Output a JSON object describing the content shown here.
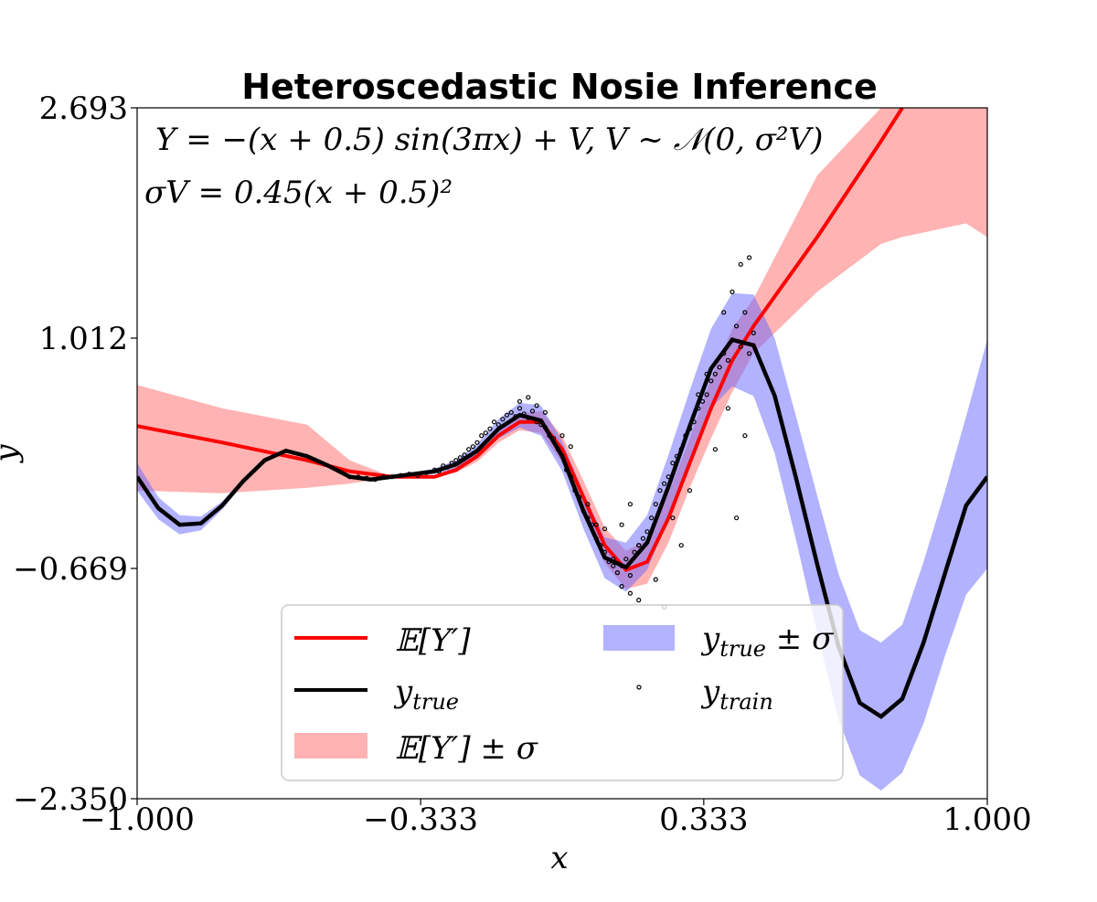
{
  "chart_data": {
    "type": "line",
    "title": "Heteroscedastic Nosie Inference",
    "xlabel": "x",
    "ylabel": "y",
    "xlim": [
      -1.0,
      1.0
    ],
    "ylim": [
      -2.35,
      2.693
    ],
    "xticks": [
      "−1.000",
      "−0.333",
      "0.333",
      "1.000"
    ],
    "xtick_values": [
      -1.0,
      -0.333,
      0.333,
      1.0
    ],
    "yticks": [
      "−2.350",
      "−0.669",
      "1.012",
      "2.693"
    ],
    "ytick_values": [
      -2.35,
      -0.669,
      1.012,
      2.693
    ],
    "grid": false,
    "legend_position": "lower-center",
    "annotations": {
      "equation_line1": "Y = −(x + 0.5) sin(3πx) + V,  V ~ 𝒩(0, σ²V)",
      "equation_line2": "σV = 0.45(x + 0.5)²"
    },
    "legend": [
      {
        "key": "mean",
        "label": "𝔼[Y′]",
        "color": "#ff0000"
      },
      {
        "key": "true",
        "label": "y",
        "sub": "true",
        "color": "#000000"
      },
      {
        "key": "mean_band",
        "label": "𝔼[Y′] ± σ",
        "color": "#ffb3b3"
      },
      {
        "key": "true_band",
        "label": "y",
        "sub": "true",
        "suffix": " ± σ",
        "color": "#b3b3ff"
      },
      {
        "key": "train",
        "label": "y",
        "sub": "train",
        "color": "#000000"
      }
    ],
    "series": [
      {
        "name": "𝔼[Y′]",
        "color": "#ff0000",
        "x": [
          -1.0,
          -0.8,
          -0.6,
          -0.5,
          -0.4,
          -0.35,
          -0.3,
          -0.25,
          -0.2,
          -0.15,
          -0.1,
          -0.05,
          0.0,
          0.05,
          0.1,
          0.15,
          0.2,
          0.25,
          0.3,
          0.35,
          0.4,
          0.45,
          0.6,
          0.75,
          0.8
        ],
        "y": [
          0.37,
          0.25,
          0.12,
          0.04,
          0.0,
          0.0,
          0.0,
          0.05,
          0.15,
          0.3,
          0.4,
          0.4,
          0.2,
          -0.15,
          -0.5,
          -0.68,
          -0.62,
          -0.3,
          0.1,
          0.5,
          0.85,
          1.1,
          1.75,
          2.45,
          2.693
        ]
      },
      {
        "name": "𝔼[Y′] ± σ",
        "color": "#ffb3b3",
        "x": [
          -1.0,
          -0.8,
          -0.6,
          -0.5,
          -0.4,
          -0.35,
          -0.3,
          -0.25,
          -0.2,
          -0.15,
          -0.1,
          -0.05,
          0.0,
          0.05,
          0.1,
          0.15,
          0.2,
          0.25,
          0.3,
          0.35,
          0.4,
          0.45,
          0.6,
          0.75,
          0.8,
          0.95,
          1.0
        ],
        "lower": [
          -0.1,
          -0.12,
          -0.08,
          -0.05,
          0.0,
          0.0,
          0.0,
          0.03,
          0.11,
          0.25,
          0.34,
          0.32,
          0.1,
          -0.27,
          -0.63,
          -0.82,
          -0.78,
          -0.48,
          -0.08,
          0.28,
          0.62,
          0.9,
          1.35,
          1.7,
          1.75,
          1.85,
          1.75
        ],
        "upper": [
          0.67,
          0.5,
          0.38,
          0.12,
          0.0,
          0.0,
          0.01,
          0.07,
          0.19,
          0.35,
          0.46,
          0.48,
          0.3,
          -0.03,
          -0.37,
          -0.54,
          -0.46,
          -0.12,
          0.28,
          0.72,
          1.08,
          1.3,
          2.2,
          2.693,
          2.693,
          2.693,
          2.693
        ]
      },
      {
        "name": "y_true",
        "color": "#000000",
        "x": [
          -1.0,
          -0.95,
          -0.9,
          -0.85,
          -0.8,
          -0.75,
          -0.7,
          -0.65,
          -0.6,
          -0.55,
          -0.5,
          -0.45,
          -0.4,
          -0.35,
          -0.3,
          -0.25,
          -0.2,
          -0.15,
          -0.1,
          -0.05,
          0.0,
          0.05,
          0.1,
          0.15,
          0.2,
          0.25,
          0.3,
          0.35,
          0.4,
          0.45,
          0.5,
          0.55,
          0.6,
          0.65,
          0.7,
          0.75,
          0.8,
          0.85,
          0.9,
          0.95,
          1.0
        ],
        "y": [
          0.0,
          -0.23,
          -0.35,
          -0.34,
          -0.21,
          -0.03,
          0.12,
          0.19,
          0.15,
          0.08,
          0.0,
          -0.02,
          0.0,
          0.02,
          0.04,
          0.09,
          0.19,
          0.35,
          0.45,
          0.41,
          0.15,
          -0.25,
          -0.59,
          -0.66,
          -0.48,
          -0.07,
          0.37,
          0.79,
          1.0,
          0.96,
          0.59,
          -0.01,
          -0.64,
          -1.24,
          -1.65,
          -1.75,
          -1.62,
          -1.21,
          -0.71,
          -0.21,
          0.0
        ]
      },
      {
        "name": "y_true ± σ",
        "color": "#b3b3ff",
        "x": [
          -1.0,
          -0.95,
          -0.9,
          -0.85,
          -0.8,
          -0.75,
          -0.7,
          -0.65,
          -0.6,
          -0.55,
          -0.5,
          -0.45,
          -0.4,
          -0.35,
          -0.3,
          -0.25,
          -0.2,
          -0.15,
          -0.1,
          -0.05,
          0.0,
          0.05,
          0.1,
          0.15,
          0.2,
          0.25,
          0.3,
          0.35,
          0.4,
          0.45,
          0.5,
          0.55,
          0.6,
          0.65,
          0.7,
          0.75,
          0.8,
          0.85,
          0.9,
          0.95,
          1.0
        ],
        "lower": [
          -0.1,
          -0.31,
          -0.42,
          -0.39,
          -0.24,
          -0.05,
          0.11,
          0.19,
          0.15,
          0.08,
          0.0,
          -0.02,
          0.0,
          0.01,
          0.02,
          0.06,
          0.14,
          0.28,
          0.36,
          0.3,
          0.04,
          -0.38,
          -0.74,
          -0.84,
          -0.68,
          -0.3,
          0.11,
          0.5,
          0.66,
          0.59,
          0.17,
          -0.46,
          -1.14,
          -1.77,
          -2.18,
          -2.29,
          -2.16,
          -1.8,
          -1.31,
          -0.86,
          -0.67
        ],
        "upper": [
          0.1,
          -0.15,
          -0.28,
          -0.29,
          -0.18,
          -0.01,
          0.13,
          0.19,
          0.15,
          0.08,
          0.0,
          -0.02,
          0.0,
          0.03,
          0.06,
          0.12,
          0.24,
          0.42,
          0.54,
          0.52,
          0.26,
          -0.12,
          -0.44,
          -0.48,
          -0.28,
          0.16,
          0.63,
          1.08,
          1.34,
          1.33,
          1.01,
          0.44,
          -0.14,
          -0.71,
          -1.12,
          -1.21,
          -1.08,
          -0.62,
          -0.11,
          0.44,
          1.0
        ]
      }
    ],
    "scatter": {
      "name": "y_train",
      "x": [
        -0.5,
        -0.48,
        -0.46,
        -0.44,
        -0.42,
        -0.4,
        -0.38,
        -0.36,
        -0.34,
        -0.32,
        -0.3,
        -0.29,
        -0.28,
        -0.27,
        -0.26,
        -0.25,
        -0.24,
        -0.23,
        -0.22,
        -0.21,
        -0.2,
        -0.19,
        -0.18,
        -0.17,
        -0.16,
        -0.15,
        -0.14,
        -0.13,
        -0.12,
        -0.11,
        -0.1,
        -0.09,
        -0.08,
        -0.07,
        -0.06,
        -0.05,
        -0.04,
        -0.03,
        -0.02,
        -0.01,
        0.0,
        0.01,
        0.02,
        0.03,
        0.04,
        0.05,
        0.06,
        0.07,
        0.08,
        0.09,
        0.1,
        0.11,
        0.12,
        0.13,
        0.14,
        0.15,
        0.16,
        0.17,
        0.18,
        0.19,
        0.2,
        0.21,
        0.22,
        0.23,
        0.24,
        0.25,
        0.26,
        0.27,
        0.28,
        0.29,
        0.3,
        0.31,
        0.32,
        0.33,
        0.34,
        0.35,
        0.36,
        0.37,
        0.38,
        0.39,
        0.4,
        0.41,
        0.42,
        0.43,
        0.44,
        0.45,
        -0.1,
        -0.08,
        -0.06,
        -0.04,
        0.0,
        0.02,
        0.06,
        0.08,
        0.1,
        0.12,
        0.14,
        0.16,
        0.18,
        0.22,
        0.26,
        0.3,
        0.32,
        0.34,
        0.36,
        0.38,
        0.4,
        0.42,
        0.44,
        0.14,
        0.16,
        0.18,
        0.24,
        0.28,
        0.39,
        0.41,
        0.43
      ],
      "y": [
        0.0,
        0.0,
        -0.01,
        -0.02,
        0.0,
        0.0,
        0.01,
        0.02,
        0.01,
        0.03,
        0.05,
        0.04,
        0.08,
        0.07,
        0.1,
        0.12,
        0.14,
        0.16,
        0.2,
        0.22,
        0.25,
        0.3,
        0.32,
        0.35,
        0.4,
        0.38,
        0.42,
        0.45,
        0.47,
        0.44,
        0.5,
        0.46,
        0.43,
        0.48,
        0.4,
        0.38,
        0.36,
        0.3,
        0.28,
        0.2,
        0.15,
        0.05,
        0.0,
        -0.1,
        -0.15,
        -0.25,
        -0.3,
        -0.35,
        -0.45,
        -0.5,
        -0.55,
        -0.62,
        -0.6,
        -0.7,
        -0.65,
        -0.6,
        -0.72,
        -0.55,
        -0.5,
        -0.45,
        -0.4,
        -0.3,
        -0.2,
        -0.1,
        -0.05,
        0.0,
        0.1,
        0.15,
        0.2,
        0.3,
        0.35,
        0.4,
        0.5,
        0.55,
        0.6,
        0.7,
        0.75,
        0.8,
        0.9,
        0.85,
        1.0,
        1.1,
        0.95,
        1.2,
        0.9,
        1.05,
        0.55,
        0.58,
        0.52,
        0.47,
        0.3,
        0.22,
        -0.2,
        -0.35,
        -0.38,
        -0.65,
        -0.8,
        -0.85,
        -0.9,
        -0.75,
        -0.3,
        -0.1,
        0.6,
        0.75,
        0.2,
        1.2,
        1.35,
        1.55,
        1.6,
        -0.35,
        -0.2,
        -0.5,
        -0.95,
        -0.5,
        0.5,
        -0.3,
        0.3
      ]
    }
  }
}
